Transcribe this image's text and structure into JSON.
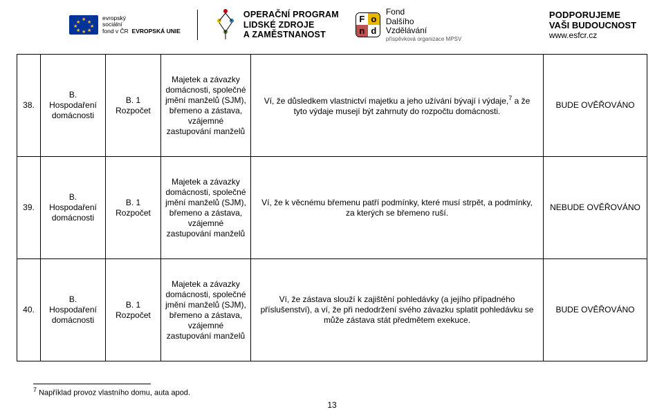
{
  "logos": {
    "esf": {
      "line1": "evropský",
      "line2": "sociální",
      "line3": "fond v ČR",
      "eu": "EVROPSKÁ UNIE"
    },
    "op": {
      "line1": "OPERAČNÍ PROGRAM",
      "line2": "LIDSKÉ ZDROJE",
      "line3": "A ZAMĚSTNANOST",
      "dot_colors": [
        "#c00000",
        "#e6b800",
        "#2e75b6",
        "#548235"
      ]
    },
    "fn": {
      "cells": [
        "F",
        "o",
        "n",
        "d"
      ],
      "cell_bg": [
        "#ffffff",
        "#e6b800",
        "#c0504d",
        "#ffffff"
      ],
      "line1": "Fond",
      "line2": "Dalšího",
      "line3": "Vzdělávání",
      "sub": "příspěvková organizace MPSV"
    },
    "support": {
      "line1": "PODPORUJEME",
      "line2": "VAŠI BUDOUCNOST",
      "line3": "www.esfcr.cz"
    }
  },
  "table": {
    "rows": [
      {
        "num": "38.",
        "topic": "B.\nHospodaření domácnosti",
        "sub": "B. 1\nRozpočet",
        "main": "Majetek a závazky domácnosti, společné jmění manželů (SJM), břemeno a zástava, vzájemné zastupování manželů",
        "desc_pre": "Ví, že důsledkem vlastnictví majetku a jeho užívání bývají i výdaje,",
        "desc_sup": "7",
        "desc_post": " a že tyto výdaje musejí být zahrnuty do rozpočtu domácnosti.",
        "flag": "BUDE OVĚŘOVÁNO"
      },
      {
        "num": "39.",
        "topic": "B.\nHospodaření domácnosti",
        "sub": "B. 1\nRozpočet",
        "main": "Majetek a závazky domácnosti, společné jmění manželů (SJM), břemeno a zástava, vzájemné zastupování manželů",
        "desc_pre": "Ví, že k věcnému břemenu patří podmínky, které musí strpět, a podmínky, za kterých se břemeno ruší.",
        "desc_sup": "",
        "desc_post": "",
        "flag": "NEBUDE OVĚŘOVÁNO"
      },
      {
        "num": "40.",
        "topic": "B.\nHospodaření domácnosti",
        "sub": "B. 1\nRozpočet",
        "main": "Majetek a závazky domácnosti, společné jmění manželů (SJM), břemeno a zástava, vzájemné zastupování manželů",
        "desc_pre": "Ví, že zástava slouží k zajištění pohledávky (a jejího případného příslušenství), a ví, že při nedodržení svého závazku splatit pohledávku se může zástava stát předmětem exekuce.",
        "desc_sup": "",
        "desc_post": "",
        "flag": "BUDE OVĚŘOVÁNO"
      }
    ]
  },
  "footer": {
    "note_sup": "7",
    "note_text": " Například provoz vlastního domu, auta apod.",
    "page": "13"
  },
  "colors": {
    "text": "#000000",
    "bg": "#ffffff",
    "border": "#000000",
    "eu_blue": "#003399",
    "eu_yellow": "#ffcc00"
  }
}
